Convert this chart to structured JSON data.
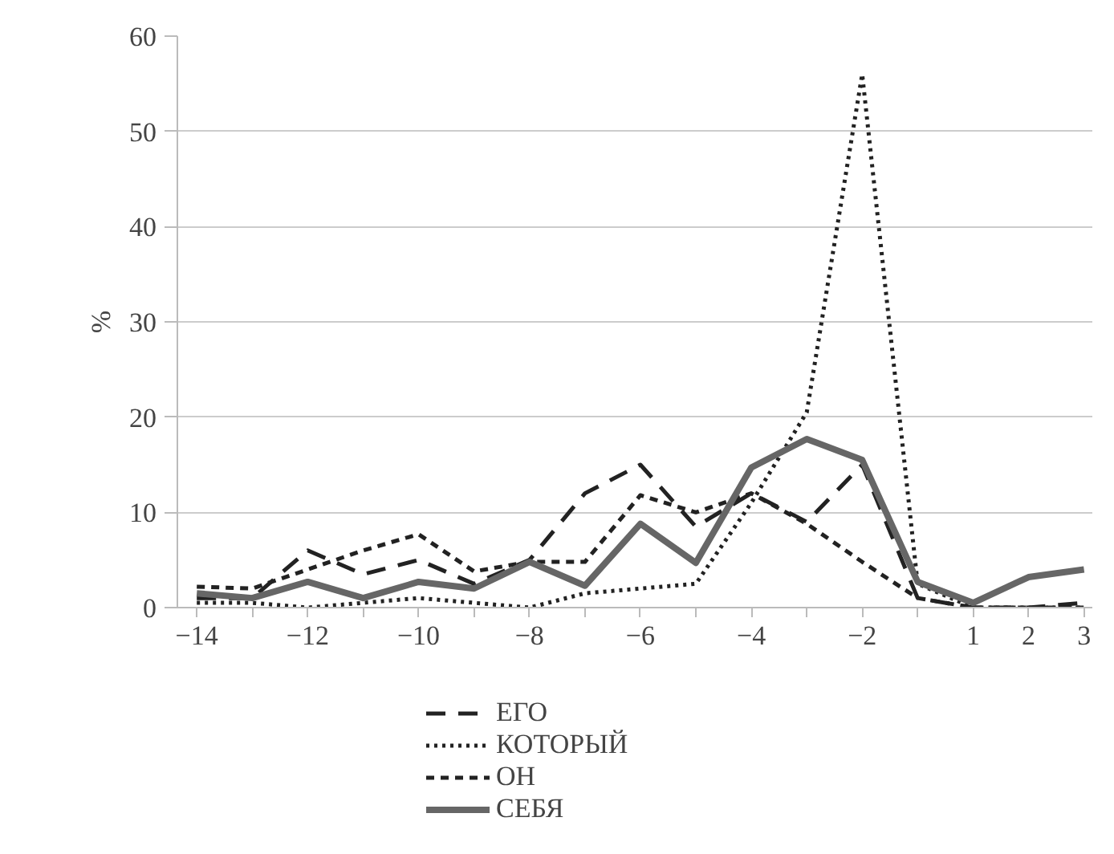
{
  "chart_data": {
    "type": "line",
    "ylabel": "%",
    "categories": [
      "−14",
      null,
      "−12",
      null,
      "−10",
      null,
      "−8",
      null,
      "−6",
      null,
      "−4",
      null,
      "−2",
      null,
      "1",
      "2",
      "3"
    ],
    "series": [
      {
        "name": "ЕГО",
        "color": "#222222",
        "line_style": "dashed",
        "values": [
          1,
          1,
          6,
          3.5,
          5,
          2.5,
          5,
          12,
          15,
          8.5,
          12,
          9,
          15,
          1,
          0,
          0,
          0.5
        ]
      },
      {
        "name": "КОТОРЫЙ",
        "color": "#222222",
        "line_style": "dotted",
        "values": [
          0.5,
          0.5,
          0,
          0.5,
          1,
          0.5,
          0,
          1.5,
          2,
          2.5,
          11,
          20.5,
          56,
          2.5,
          0,
          0,
          0
        ]
      },
      {
        "name": "ОН",
        "color": "#222222",
        "line_style": "short_dashed",
        "values": [
          2.2,
          2,
          4,
          6,
          7.7,
          3.8,
          4.8,
          4.8,
          11.8,
          10,
          12,
          8.8,
          4.8,
          1,
          0,
          0,
          0
        ]
      },
      {
        "name": "СЕБЯ",
        "color": "#666666",
        "line_style": "solid",
        "values": [
          1.5,
          1,
          2.7,
          1,
          2.7,
          2,
          4.8,
          2.3,
          8.8,
          4.7,
          14.7,
          17.7,
          15.5,
          2.7,
          0.5,
          3.2,
          4
        ]
      }
    ],
    "ylim": [
      0,
      60
    ],
    "yticks": [
      0,
      10,
      20,
      30,
      40,
      50,
      60
    ],
    "grid": "y",
    "legend": "bottom",
    "marker": "none"
  }
}
